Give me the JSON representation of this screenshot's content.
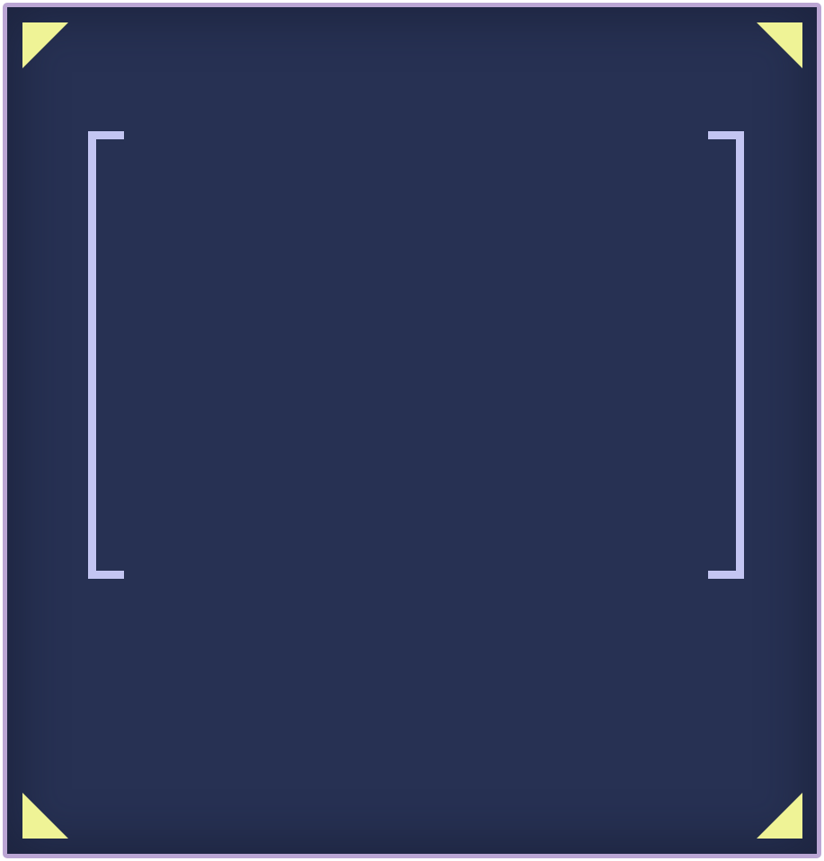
{
  "colors": {
    "background": "#273153",
    "border": "#bba6d4",
    "corner_marker": "#eff396",
    "bracket": "#c3c5f2"
  },
  "icons": {
    "top_left": "corner-triangle-icon",
    "top_right": "corner-triangle-icon",
    "bottom_left": "corner-triangle-icon",
    "bottom_right": "corner-triangle-icon",
    "left_bracket": "left-bracket-icon",
    "right_bracket": "right-bracket-icon"
  }
}
